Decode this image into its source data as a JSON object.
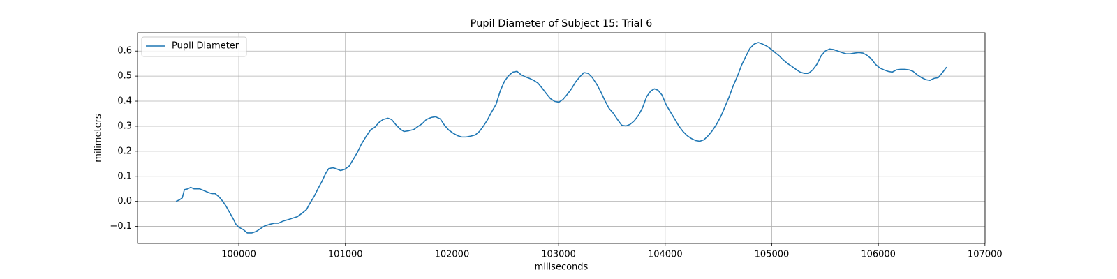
{
  "chart_data": {
    "type": "line",
    "title": "Pupil Diameter of Subject 15: Trial 6",
    "xlabel": "miliseconds",
    "ylabel": "milimeters",
    "x": [
      99411,
      99444,
      99470,
      99490,
      99522,
      99549,
      99581,
      99634,
      99679,
      99712,
      99745,
      99778,
      99817,
      99850,
      99882,
      99915,
      99948,
      99974,
      100000,
      100046,
      100079,
      100124,
      100164,
      100203,
      100242,
      100288,
      100334,
      100373,
      100419,
      100464,
      100504,
      100550,
      100595,
      100635,
      100667,
      100707,
      100746,
      100778,
      100818,
      100844,
      100883,
      100909,
      100955,
      100994,
      101034,
      101073,
      101112,
      101151,
      101191,
      101236,
      101276,
      101315,
      101354,
      101400,
      101433,
      101478,
      101518,
      101550,
      101596,
      101642,
      101681,
      101721,
      101760,
      101806,
      101845,
      101891,
      101930,
      101969,
      102015,
      102054,
      102093,
      102133,
      102172,
      102218,
      102257,
      102296,
      102335,
      102368,
      102414,
      102453,
      102493,
      102532,
      102571,
      102610,
      102650,
      102689,
      102728,
      102767,
      102807,
      102846,
      102885,
      102924,
      102964,
      103003,
      103042,
      103081,
      103121,
      103160,
      103199,
      103238,
      103278,
      103317,
      103356,
      103395,
      103435,
      103474,
      103513,
      103552,
      103592,
      103631,
      103670,
      103709,
      103749,
      103788,
      103827,
      103866,
      103899,
      103932,
      103971,
      104010,
      104049,
      104089,
      104128,
      104167,
      104207,
      104246,
      104285,
      104324,
      104364,
      104403,
      104442,
      104481,
      104521,
      104560,
      104599,
      104638,
      104678,
      104717,
      104756,
      104795,
      104835,
      104874,
      104913,
      104952,
      104992,
      105031,
      105070,
      105109,
      105149,
      105188,
      105227,
      105266,
      105306,
      105345,
      105384,
      105423,
      105463,
      105502,
      105541,
      105580,
      105620,
      105659,
      105698,
      105737,
      105777,
      105816,
      105855,
      105894,
      105934,
      105973,
      106012,
      106051,
      106091,
      106130,
      106169,
      106208,
      106248,
      106287,
      106326,
      106365,
      106405,
      106444,
      106483,
      106522,
      106562,
      106601,
      106640
    ],
    "series": [
      {
        "name": "Pupil Diameter",
        "color": "#1f77b4",
        "values": [
          0,
          0.006,
          0.014,
          0.047,
          0.05,
          0.056,
          0.05,
          0.05,
          0.042,
          0.036,
          0.031,
          0.031,
          0.017,
          0,
          -0.02,
          -0.045,
          -0.07,
          -0.092,
          -0.103,
          -0.114,
          -0.126,
          -0.126,
          -0.12,
          -0.109,
          -0.098,
          -0.092,
          -0.087,
          -0.087,
          -0.078,
          -0.073,
          -0.067,
          -0.061,
          -0.047,
          -0.033,
          -0.008,
          0.02,
          0.053,
          0.078,
          0.114,
          0.131,
          0.134,
          0.131,
          0.123,
          0.128,
          0.14,
          0.167,
          0.195,
          0.229,
          0.257,
          0.285,
          0.296,
          0.315,
          0.327,
          0.332,
          0.327,
          0.304,
          0.287,
          0.279,
          0.282,
          0.287,
          0.299,
          0.31,
          0.327,
          0.335,
          0.338,
          0.329,
          0.304,
          0.285,
          0.271,
          0.262,
          0.257,
          0.257,
          0.26,
          0.265,
          0.279,
          0.301,
          0.327,
          0.354,
          0.388,
          0.441,
          0.48,
          0.502,
          0.516,
          0.519,
          0.505,
          0.497,
          0.491,
          0.483,
          0.472,
          0.452,
          0.43,
          0.41,
          0.399,
          0.396,
          0.407,
          0.427,
          0.449,
          0.477,
          0.497,
          0.514,
          0.511,
          0.494,
          0.469,
          0.438,
          0.402,
          0.371,
          0.352,
          0.327,
          0.304,
          0.301,
          0.307,
          0.321,
          0.343,
          0.374,
          0.419,
          0.441,
          0.449,
          0.444,
          0.424,
          0.385,
          0.357,
          0.329,
          0.301,
          0.279,
          0.262,
          0.251,
          0.243,
          0.24,
          0.246,
          0.262,
          0.282,
          0.307,
          0.338,
          0.377,
          0.416,
          0.461,
          0.5,
          0.544,
          0.578,
          0.611,
          0.628,
          0.634,
          0.628,
          0.62,
          0.608,
          0.594,
          0.581,
          0.564,
          0.55,
          0.539,
          0.527,
          0.516,
          0.511,
          0.511,
          0.525,
          0.547,
          0.581,
          0.6,
          0.608,
          0.606,
          0.6,
          0.594,
          0.589,
          0.589,
          0.592,
          0.594,
          0.592,
          0.583,
          0.569,
          0.547,
          0.533,
          0.525,
          0.519,
          0.516,
          0.525,
          0.527,
          0.527,
          0.525,
          0.519,
          0.505,
          0.494,
          0.486,
          0.483,
          0.491,
          0.494,
          0.514,
          0.536
        ]
      }
    ],
    "xlim": [
      99050,
      107001
    ],
    "xticks": [
      100000,
      101000,
      102000,
      103000,
      104000,
      105000,
      106000,
      107000
    ],
    "ylim": [
      -0.168,
      0.673
    ],
    "yticks": [
      {
        "value": -0.1,
        "label": "−0.1"
      },
      {
        "value": 0,
        "label": "0.0"
      },
      0.1,
      0.2,
      0.3,
      0.4,
      0.5,
      0.6
    ],
    "grid": true,
    "legend": "upper left"
  }
}
